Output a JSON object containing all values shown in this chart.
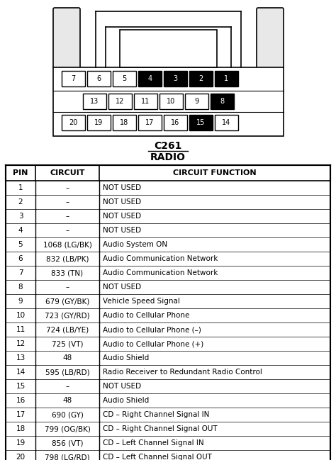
{
  "title_connector": "C261",
  "title_type": "RADIO",
  "connector_rows": [
    {
      "pins": [
        7,
        6,
        5,
        4,
        3,
        2,
        1
      ],
      "black_pins": [
        4,
        3,
        2,
        1
      ]
    },
    {
      "pins": [
        13,
        12,
        11,
        10,
        9,
        8
      ],
      "black_pins": [
        8
      ]
    },
    {
      "pins": [
        20,
        19,
        18,
        17,
        16,
        15,
        14
      ],
      "black_pins": [
        15
      ]
    }
  ],
  "table_headers": [
    "PIN",
    "CIRCUIT",
    "CIRCUIT FUNCTION"
  ],
  "table_data": [
    [
      "1",
      "–",
      "NOT USED"
    ],
    [
      "2",
      "–",
      "NOT USED"
    ],
    [
      "3",
      "–",
      "NOT USED"
    ],
    [
      "4",
      "–",
      "NOT USED"
    ],
    [
      "5",
      "1068 (LG/BK)",
      "Audio System ON"
    ],
    [
      "6",
      "832 (LB/PK)",
      "Audio Communication Network"
    ],
    [
      "7",
      "833 (TN)",
      "Audio Communication Network"
    ],
    [
      "8",
      "–",
      "NOT USED"
    ],
    [
      "9",
      "679 (GY/BK)",
      "Vehicle Speed Signal"
    ],
    [
      "10",
      "723 (GY/RD)",
      "Audio to Cellular Phone"
    ],
    [
      "11",
      "724 (LB/YE)",
      "Audio to Cellular Phone (–)"
    ],
    [
      "12",
      "725 (VT)",
      "Audio to Cellular Phone (+)"
    ],
    [
      "13",
      "48",
      "Audio Shield"
    ],
    [
      "14",
      "595 (LB/RD)",
      "Radio Receiver to Redundant Radio Control"
    ],
    [
      "15",
      "–",
      "NOT USED"
    ],
    [
      "16",
      "48",
      "Audio Shield"
    ],
    [
      "17",
      "690 (GY)",
      "CD – Right Channel Signal IN"
    ],
    [
      "18",
      "799 (OG/BK)",
      "CD – Right Channel Signal OUT"
    ],
    [
      "19",
      "856 (VT)",
      "CD – Left Channel Signal IN"
    ],
    [
      "20",
      "798 (LG/RD)",
      "CD – Left Channel Signal OUT"
    ]
  ],
  "bg_color": "#ffffff",
  "figsize": [
    4.74,
    6.49
  ],
  "dpi": 100
}
